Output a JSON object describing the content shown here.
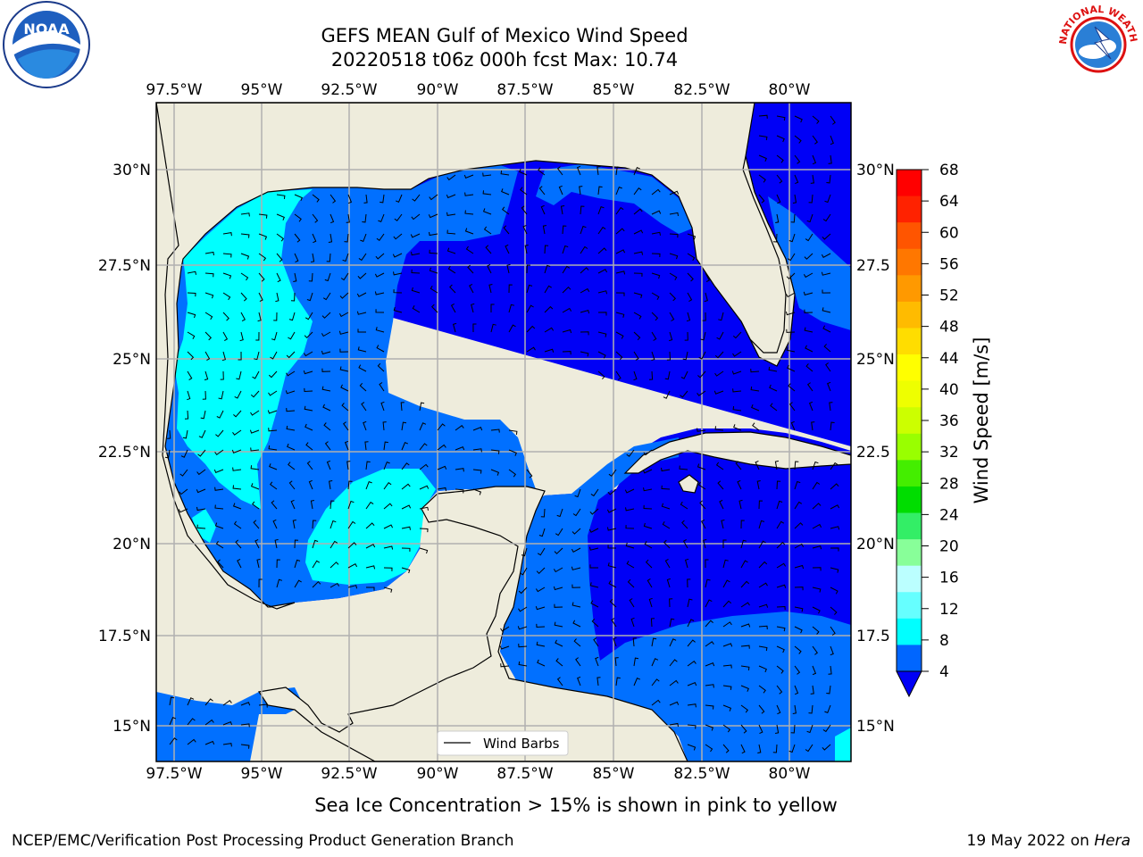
{
  "header": {
    "title_line1": "GEFS MEAN Gulf of Mexico Wind Speed",
    "title_line2": "20220518 t06z 000h fcst   Max: 10.74"
  },
  "logos": {
    "left": {
      "icon": "noaa-logo",
      "text": "NOAA"
    },
    "right": {
      "icon": "nws-logo",
      "text": "NATIONAL WEATHER SERVICE"
    }
  },
  "map": {
    "lon_labels": [
      "97.5°W",
      "95°W",
      "92.5°W",
      "90°W",
      "87.5°W",
      "85°W",
      "82.5°W",
      "80°W"
    ],
    "lat_labels_left": [
      "30°N",
      "27.5°N",
      "25°N",
      "22.5°N",
      "20°N",
      "17.5°N",
      "15°N"
    ],
    "lat_labels_right": [
      "30°N",
      "27.5",
      "25°N",
      "22.5",
      "20°N",
      "17.5",
      "15°N"
    ],
    "legend_label": "Wind Barbs",
    "colors": {
      "land": "#eeecdc",
      "ocean_lt4": "#0000f6",
      "w4_8": "#0170ff",
      "w8_12": "#00ffff",
      "grid": "#b0b0b0"
    }
  },
  "colorbar": {
    "label": "Wind Speed [m/s]",
    "ticks": [
      "68",
      "64",
      "60",
      "56",
      "52",
      "48",
      "44",
      "40",
      "36",
      "32",
      "28",
      "24",
      "20",
      "16",
      "12",
      "8",
      "4"
    ],
    "colors": [
      "#ff0000",
      "#ff2200",
      "#ff5500",
      "#ff7700",
      "#ff9900",
      "#ffbb00",
      "#ffdd00",
      "#ffff00",
      "#eeff00",
      "#ccff00",
      "#99ff00",
      "#44ee00",
      "#00dd00",
      "#33ee66",
      "#88ff99",
      "#bbffff",
      "#66ffff",
      "#00ffff",
      "#0066ff"
    ],
    "extend_color": "#0000f6"
  },
  "footer": {
    "caption": "Sea Ice Concentration > 15% is shown in pink to yellow",
    "credit": "NCEP/EMC/Verification Post Processing Product Generation Branch",
    "date": "19 May 2022 on ",
    "host": "Hera"
  }
}
